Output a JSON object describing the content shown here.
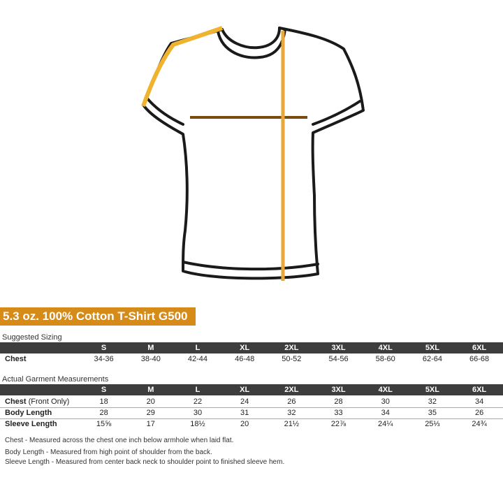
{
  "title": "5.3 oz. 100% Cotton T-Shirt G500",
  "colors": {
    "accent": "#d68a17",
    "header_bg": "#3d3d3d",
    "shoulder_line": "#f0b330",
    "chest_line": "#7a4a10",
    "length_line": "#e8a83a"
  },
  "suggested": {
    "label": "Suggested Sizing",
    "sizes": [
      "S",
      "M",
      "L",
      "XL",
      "2XL",
      "3XL",
      "4XL",
      "5XL",
      "6XL"
    ],
    "rows": [
      {
        "label": "Chest",
        "values": [
          "34-36",
          "38-40",
          "42-44",
          "46-48",
          "50-52",
          "54-56",
          "58-60",
          "62-64",
          "66-68"
        ]
      }
    ]
  },
  "actual": {
    "label": "Actual Garment Measurements",
    "sizes": [
      "S",
      "M",
      "L",
      "XL",
      "2XL",
      "3XL",
      "4XL",
      "5XL",
      "6XL"
    ],
    "rows": [
      {
        "label": "Chest",
        "label_note": " (Front Only)",
        "values": [
          "18",
          "20",
          "22",
          "24",
          "26",
          "28",
          "30",
          "32",
          "34"
        ]
      },
      {
        "label": "Body Length",
        "label_note": "",
        "values": [
          "28",
          "29",
          "30",
          "31",
          "32",
          "33",
          "34",
          "35",
          "26"
        ]
      },
      {
        "label": "Sleeve Length",
        "label_note": "",
        "values": [
          "15⅝",
          "17",
          "18½",
          "20",
          "21½",
          "22⅞",
          "24¼",
          "25⅓",
          "24¾"
        ]
      }
    ]
  },
  "notes": [
    "Chest - Measured across the chest one inch below armhole when laid flat.",
    "Body Length - Measured from high point of shoulder from the back.",
    "Sleeve Length - Measured from center back neck to shoulder point to finished sleeve hem."
  ]
}
